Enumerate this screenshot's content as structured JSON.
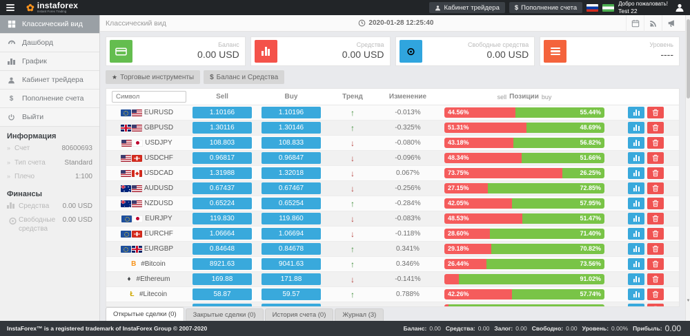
{
  "topbar": {
    "brand": "instaforex",
    "brand_sub": "Instant Forex Trading",
    "trader_cabinet": "Кабинет трейдера",
    "deposit": "Пополнение счета",
    "welcome": "Добро пожаловать!",
    "username": "Test 22"
  },
  "sidebar": {
    "menu": [
      {
        "id": "classic",
        "icon": "grid",
        "label": "Классический вид",
        "active": true
      },
      {
        "id": "dashboard",
        "icon": "gauge",
        "label": "Дашборд",
        "active": false
      },
      {
        "id": "chart",
        "icon": "bars",
        "label": "График",
        "active": false
      },
      {
        "id": "cabinet",
        "icon": "user",
        "label": "Кабинет трейдера",
        "active": false
      },
      {
        "id": "deposit",
        "icon": "dollar",
        "label": "Пополнение счета",
        "active": false
      },
      {
        "id": "logout",
        "icon": "power",
        "label": "Выйти",
        "active": false
      }
    ],
    "info_title": "Информация",
    "info": [
      {
        "label": "Счет",
        "value": "80600693"
      },
      {
        "label": "Тип счета",
        "value": "Standard"
      },
      {
        "label": "Плечо",
        "value": "1:100"
      }
    ],
    "finance_title": "Финансы",
    "finance": [
      {
        "icon": "bars",
        "label": "Средства",
        "value": "0.00 USD"
      },
      {
        "icon": "coin",
        "label": "Свободные средства",
        "value": "0.00 USD"
      }
    ]
  },
  "header": {
    "title": "Классический вид",
    "datetime": "2020-01-28 12:25:40"
  },
  "cards": [
    {
      "icon": "credit-card",
      "color": "#64bd4f",
      "label": "Баланс",
      "value": "0.00 USD"
    },
    {
      "icon": "card-bars",
      "color": "#f4524a",
      "label": "Средства",
      "value": "0.00 USD"
    },
    {
      "icon": "coin",
      "color": "#30a5de",
      "label": "Свободные средства",
      "value": "0.00 USD"
    },
    {
      "icon": "lines",
      "color": "#f4633c",
      "label": "Уровень",
      "value": "----"
    }
  ],
  "toolbar": {
    "instruments": "Торговые инструменты",
    "balance": "Баланс и Средства"
  },
  "table": {
    "search_placeholder": "Символ",
    "headers": {
      "sell": "Sell",
      "buy": "Buy",
      "trend": "Тренд",
      "change": "Изменение",
      "positions_sell": "sell",
      "positions": "Позиции",
      "positions_buy": "buy"
    },
    "rows": [
      {
        "symbol": "EURUSD",
        "flags": [
          "eu",
          "us"
        ],
        "sell": "1.10166",
        "buy": "1.10196",
        "trend": "up",
        "change": "-0.013%",
        "sell_pct": 44.56,
        "sell_label": "44.56%",
        "buy_pct": 55.44,
        "buy_label": "55.44%"
      },
      {
        "symbol": "GBPUSD",
        "flags": [
          "gb",
          "us"
        ],
        "sell": "1.30116",
        "buy": "1.30146",
        "trend": "up",
        "change": "-0.325%",
        "sell_pct": 51.31,
        "sell_label": "51.31%",
        "buy_pct": 48.69,
        "buy_label": "48.69%"
      },
      {
        "symbol": "USDJPY",
        "flags": [
          "us",
          "jp"
        ],
        "sell": "108.803",
        "buy": "108.833",
        "trend": "down",
        "change": "-0.080%",
        "sell_pct": 43.18,
        "sell_label": "43.18%",
        "buy_pct": 56.82,
        "buy_label": "56.82%"
      },
      {
        "symbol": "USDCHF",
        "flags": [
          "us",
          "ch"
        ],
        "sell": "0.96817",
        "buy": "0.96847",
        "trend": "down",
        "change": "-0.096%",
        "sell_pct": 48.34,
        "sell_label": "48.34%",
        "buy_pct": 51.66,
        "buy_label": "51.66%"
      },
      {
        "symbol": "USDCAD",
        "flags": [
          "us",
          "ca"
        ],
        "sell": "1.31988",
        "buy": "1.32018",
        "trend": "down",
        "change": "0.067%",
        "sell_pct": 73.75,
        "sell_label": "73.75%",
        "buy_pct": 26.25,
        "buy_label": "26.25%"
      },
      {
        "symbol": "AUDUSD",
        "flags": [
          "au",
          "us"
        ],
        "sell": "0.67437",
        "buy": "0.67467",
        "trend": "down",
        "change": "-0.256%",
        "sell_pct": 27.15,
        "sell_label": "27.15%",
        "buy_pct": 72.85,
        "buy_label": "72.85%"
      },
      {
        "symbol": "NZDUSD",
        "flags": [
          "nz",
          "us"
        ],
        "sell": "0.65224",
        "buy": "0.65254",
        "trend": "up",
        "change": "-0.284%",
        "sell_pct": 42.05,
        "sell_label": "42.05%",
        "buy_pct": 57.95,
        "buy_label": "57.95%"
      },
      {
        "symbol": "EURJPY",
        "flags": [
          "eu",
          "jp"
        ],
        "sell": "119.830",
        "buy": "119.860",
        "trend": "down",
        "change": "-0.083%",
        "sell_pct": 48.53,
        "sell_label": "48.53%",
        "buy_pct": 51.47,
        "buy_label": "51.47%"
      },
      {
        "symbol": "EURCHF",
        "flags": [
          "eu",
          "ch"
        ],
        "sell": "1.06664",
        "buy": "1.06694",
        "trend": "down",
        "change": "-0.118%",
        "sell_pct": 28.6,
        "sell_label": "28.60%",
        "buy_pct": 71.4,
        "buy_label": "71.40%"
      },
      {
        "symbol": "EURGBP",
        "flags": [
          "eu",
          "gb"
        ],
        "sell": "0.84648",
        "buy": "0.84678",
        "trend": "up",
        "change": "0.341%",
        "sell_pct": 29.18,
        "sell_label": "29.18%",
        "buy_pct": 70.82,
        "buy_label": "70.82%"
      },
      {
        "symbol": "#Bitcoin",
        "flags": [
          "btc"
        ],
        "sell": "8921.63",
        "buy": "9041.63",
        "trend": "up",
        "change": "0.346%",
        "sell_pct": 26.44,
        "sell_label": "26.44%",
        "buy_pct": 73.56,
        "buy_label": "73.56%"
      },
      {
        "symbol": "#Ethereum",
        "flags": [
          "eth"
        ],
        "sell": "169.88",
        "buy": "171.88",
        "trend": "down",
        "change": "-0.141%",
        "sell_pct": 8.98,
        "sell_label": "",
        "buy_pct": 91.02,
        "buy_label": "91.02%"
      },
      {
        "symbol": "#Litecoin",
        "flags": [
          "ltc"
        ],
        "sell": "58.87",
        "buy": "59.57",
        "trend": "up",
        "change": "0.788%",
        "sell_pct": 42.26,
        "sell_label": "42.26%",
        "buy_pct": 57.74,
        "buy_label": "57.74%"
      },
      {
        "symbol": "",
        "flags": [
          "xrp"
        ],
        "sell": "",
        "buy": "",
        "trend": "up",
        "change": "",
        "sell_pct": 2.5,
        "sell_label": "",
        "buy_pct": 97.5,
        "buy_label": ""
      }
    ]
  },
  "tabs": [
    {
      "label": "Открытые сделки (0)",
      "active": true
    },
    {
      "label": "Закрытые сделки (0)",
      "active": false
    },
    {
      "label": "История счета (0)",
      "active": false
    },
    {
      "label": "Журнал (3)",
      "active": false
    }
  ],
  "footer": {
    "copyright": "InstaForex™ is a registered trademark of InstaForex Group © 2007-2020",
    "stats": [
      {
        "label": "Баланс:",
        "value": "0.00"
      },
      {
        "label": "Средства:",
        "value": "0.00"
      },
      {
        "label": "Залог:",
        "value": "0.00"
      },
      {
        "label": "Свободно:",
        "value": "0.00"
      },
      {
        "label": "Уровень:",
        "value": "0.00%"
      },
      {
        "label": "Прибыль:",
        "value": "0.00",
        "big": true
      }
    ]
  }
}
